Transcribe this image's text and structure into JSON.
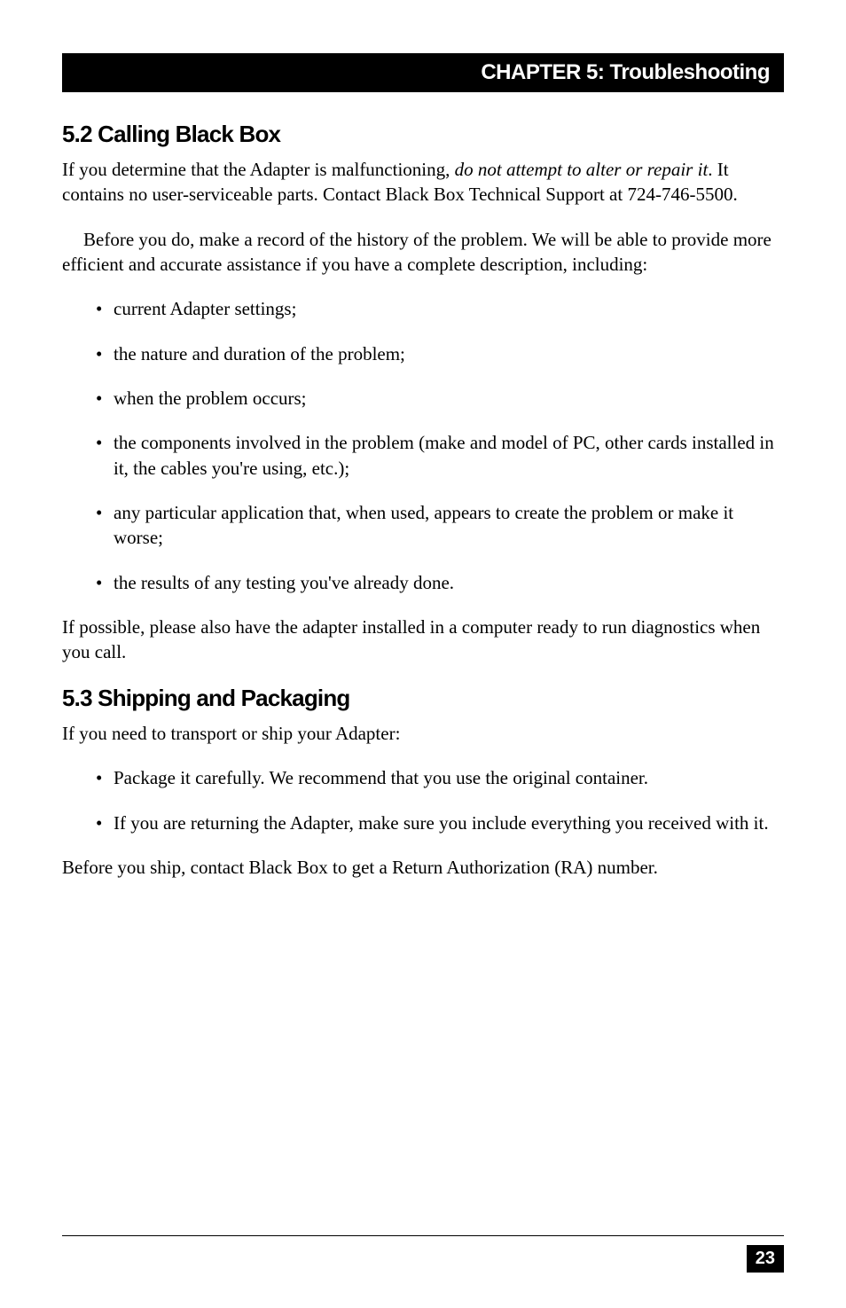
{
  "header": {
    "chapter_label": "CHAPTER 5: Troubleshooting",
    "bg_color": "#000000",
    "text_color": "#ffffff",
    "fontsize": 24
  },
  "section_5_2": {
    "heading": "5.2 Calling Black Box",
    "para1_part1": "If you determine that the Adapter is malfunctioning, ",
    "para1_italic": "do not attempt to alter or repair it",
    "para1_part2": ". It contains no user-serviceable parts. Contact Black Box Technical Support at 724-746-5500.",
    "para2": "Before you do, make a record of the history of the problem. We will be able to provide more efficient and accurate assistance if you have a complete description, including:",
    "bullets": [
      "current Adapter settings;",
      "the nature and duration of the problem;",
      "when the problem occurs;",
      "the components involved in the problem (make and model of PC, other cards installed in it, the cables you're using, etc.);",
      "any particular application that, when used, appears to create the problem or make it worse;",
      "the results of any testing you've already done."
    ],
    "para3": "If possible, please also have the adapter installed in a computer ready to run diagnostics when you call."
  },
  "section_5_3": {
    "heading": "5.3 Shipping and Packaging",
    "para1": "If you need to transport or ship your Adapter:",
    "bullets": [
      "Package it carefully. We recommend that you use the original container.",
      "If you are returning the Adapter, make sure you include everything you received with it."
    ],
    "para2": "Before you ship, contact Black Box to get a Return Authorization (RA) number."
  },
  "footer": {
    "page_number": "23",
    "bg_color": "#000000",
    "text_color": "#ffffff"
  },
  "styles": {
    "page_bg": "#ffffff",
    "body_font": "Times New Roman",
    "heading_font": "Arial",
    "body_fontsize": 21,
    "heading_fontsize": 26,
    "text_color": "#000000"
  }
}
